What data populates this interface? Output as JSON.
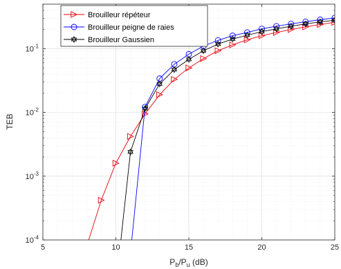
{
  "chart_data": {
    "type": "line",
    "xlabel": {
      "base": "P",
      "sub1": "b",
      "sep": "/P",
      "sub2": "u",
      "suffix": " (dB)"
    },
    "ylabel": "TEB",
    "xlim": [
      5,
      25
    ],
    "ylim": [
      0.0001,
      0.5
    ],
    "yscale": "log",
    "grid": true,
    "legend_position": "top-left",
    "x_ticks": [
      5,
      10,
      15,
      20,
      25
    ],
    "y_ticks": [
      {
        "value": 0.1,
        "base": "10",
        "exp": "-1"
      },
      {
        "value": 0.01,
        "base": "10",
        "exp": "-2"
      },
      {
        "value": 0.001,
        "base": "10",
        "exp": "-3"
      },
      {
        "value": 0.0001,
        "base": "10",
        "exp": "-4"
      }
    ],
    "series": [
      {
        "name": "Brouilleur répéteur",
        "color": "#e8000b",
        "marker": "triangle-right",
        "x": [
          8,
          9,
          10,
          11,
          12,
          13,
          14,
          15,
          16,
          17,
          18,
          19,
          20,
          21,
          22,
          23,
          24,
          25
        ],
        "y": [
          7.9e-05,
          0.00042,
          0.0016,
          0.0042,
          0.0095,
          0.019,
          0.033,
          0.05,
          0.07,
          0.093,
          0.115,
          0.138,
          0.16,
          0.18,
          0.2,
          0.22,
          0.24,
          0.26
        ]
      },
      {
        "name": "Brouilleur peigne de raies",
        "color": "#0000ff",
        "marker": "circle",
        "x": [
          11.05,
          12,
          13,
          14,
          15,
          16,
          17,
          18,
          19,
          20,
          21,
          22,
          23,
          24,
          25
        ],
        "y": [
          8e-05,
          0.0122,
          0.034,
          0.057,
          0.082,
          0.11,
          0.135,
          0.16,
          0.18,
          0.205,
          0.225,
          0.245,
          0.265,
          0.285,
          0.305
        ]
      },
      {
        "name": "Brouilleur Gaussien",
        "color": "#000000",
        "marker": "hexagram",
        "x": [
          10.3,
          11,
          12,
          13,
          14,
          15,
          16,
          17,
          18,
          19,
          20,
          21,
          22,
          23,
          24,
          25
        ],
        "y": [
          8e-05,
          0.0024,
          0.0115,
          0.028,
          0.047,
          0.068,
          0.093,
          0.118,
          0.142,
          0.163,
          0.185,
          0.205,
          0.225,
          0.245,
          0.263,
          0.28
        ]
      }
    ]
  }
}
